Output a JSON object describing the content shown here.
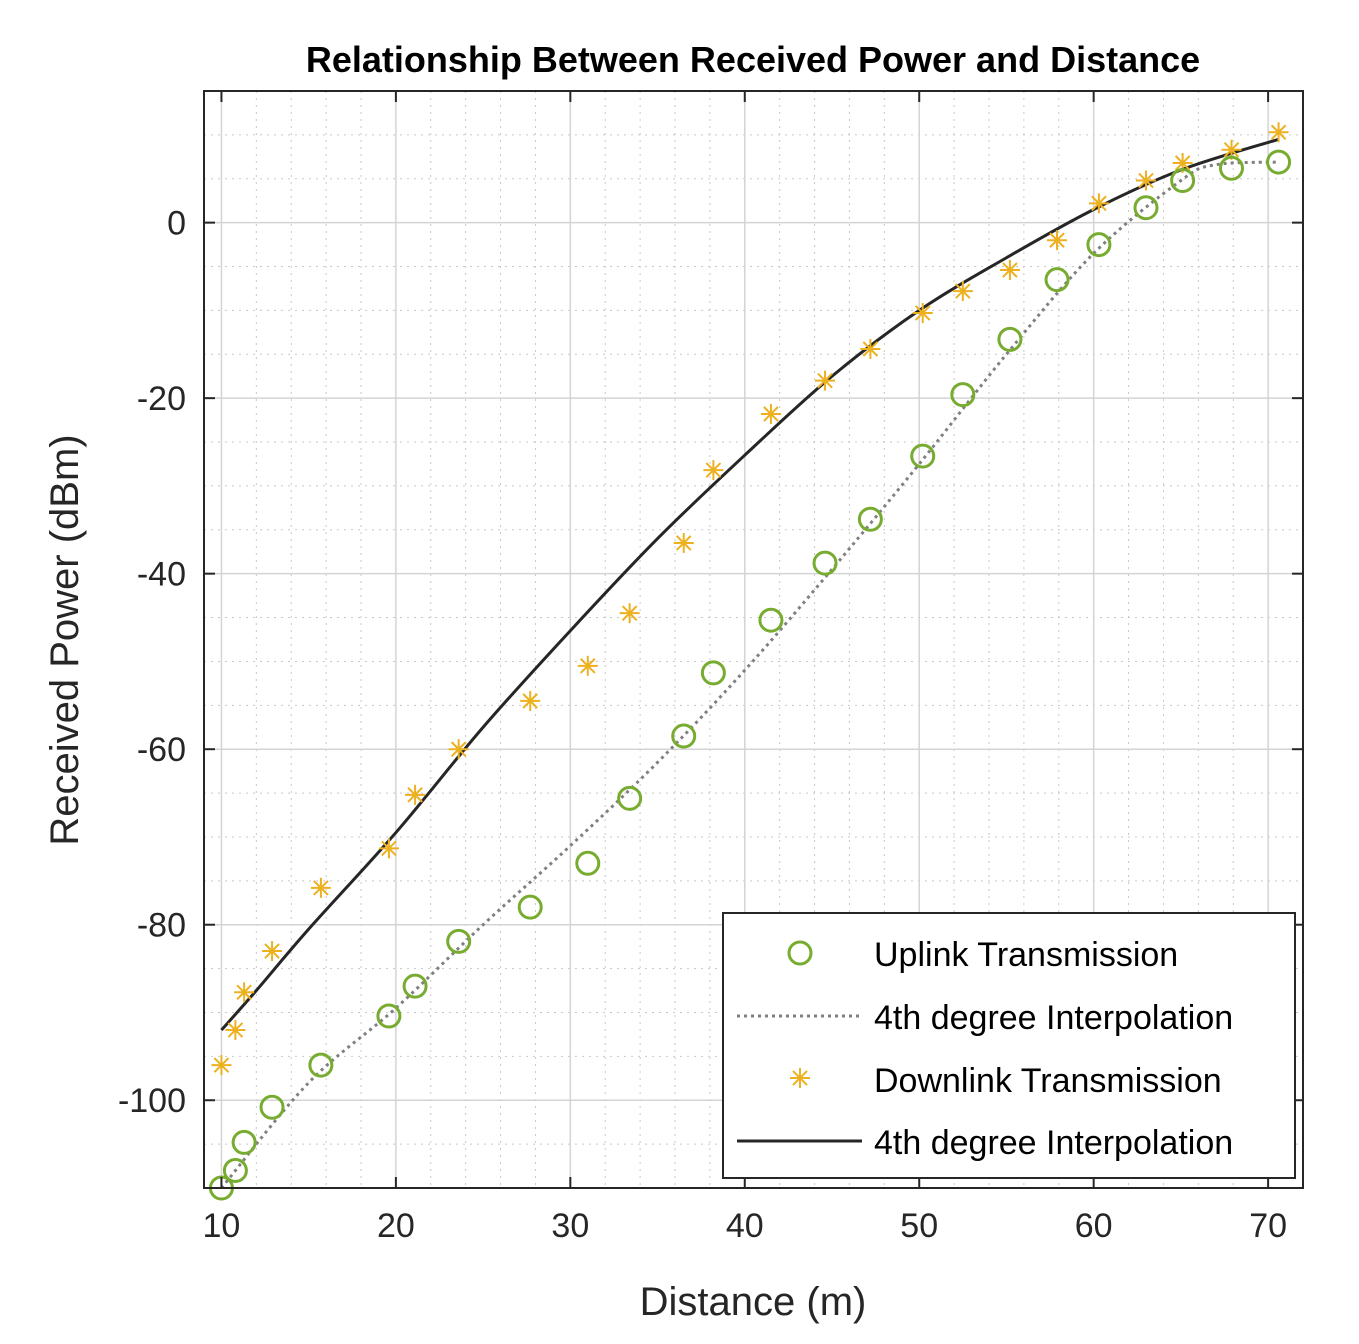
{
  "chart_data": {
    "type": "scatter",
    "title": "Relationship Between Received Power and Distance",
    "xlabel": "Distance (m)",
    "ylabel": "Received Power (dBm)",
    "xlim": [
      9,
      72
    ],
    "ylim": [
      -110,
      15
    ],
    "xticks": [
      10,
      20,
      30,
      40,
      50,
      60,
      70
    ],
    "yticks": [
      0,
      -20,
      -40,
      -60,
      -80,
      -100
    ],
    "xtick_labels": [
      "10",
      "20",
      "30",
      "40",
      "50",
      "60",
      "70"
    ],
    "ytick_labels": [
      "0",
      "-20",
      "-40",
      "-60",
      "-80",
      "-100"
    ],
    "grid": true,
    "minor_grid": true,
    "legend_position": "bottom-right",
    "series": [
      {
        "name": "Uplink Transmission",
        "kind": "scatter",
        "marker": "circle",
        "color": "#77AC30",
        "x": [
          10.0,
          10.8,
          11.3,
          12.9,
          15.7,
          19.6,
          21.1,
          23.6,
          27.7,
          31.0,
          33.4,
          36.5,
          38.2,
          41.5,
          44.6,
          47.2,
          50.2,
          52.5,
          55.2,
          57.9,
          60.3,
          63.0,
          65.1,
          67.9,
          70.6
        ],
        "y": [
          -110.0,
          -108.0,
          -104.8,
          -100.8,
          -96.0,
          -90.4,
          -87.0,
          -81.9,
          -78.0,
          -73.0,
          -65.6,
          -58.5,
          -51.3,
          -45.3,
          -38.8,
          -33.8,
          -26.6,
          -19.6,
          -13.3,
          -6.5,
          -2.5,
          1.7,
          4.8,
          6.2,
          6.9
        ]
      },
      {
        "name": "4th degree Interpolation",
        "kind": "line",
        "style": "dotted",
        "color": "#808080",
        "x": [
          10,
          15,
          20,
          25,
          30,
          35,
          40,
          45,
          50,
          55,
          60,
          65,
          67,
          70.6
        ],
        "y": [
          -110,
          -98,
          -89.5,
          -80,
          -71,
          -61.5,
          -51,
          -39.5,
          -27.5,
          -15,
          -3.5,
          4.8,
          6.6,
          6.9
        ]
      },
      {
        "name": "Downlink Transmission",
        "kind": "scatter",
        "marker": "asterisk",
        "color": "#EDB120",
        "x": [
          10.0,
          10.8,
          11.3,
          12.9,
          15.7,
          19.6,
          21.1,
          23.6,
          27.7,
          31.0,
          33.4,
          36.5,
          38.2,
          41.5,
          44.6,
          47.2,
          50.2,
          52.5,
          55.2,
          57.9,
          60.3,
          63.0,
          65.1,
          67.9,
          70.6
        ],
        "y": [
          -96.0,
          -92.0,
          -87.7,
          -83.0,
          -75.8,
          -71.3,
          -65.2,
          -60.0,
          -54.5,
          -50.5,
          -44.5,
          -36.5,
          -28.2,
          -21.8,
          -18.0,
          -14.4,
          -10.3,
          -7.8,
          -5.4,
          -2.0,
          2.2,
          4.8,
          6.8,
          8.3,
          10.3
        ]
      },
      {
        "name": "4th degree Interpolation",
        "kind": "line",
        "style": "solid",
        "color": "#262626",
        "x": [
          10,
          12,
          15,
          20,
          25,
          30,
          35,
          40,
          45,
          50,
          55,
          60,
          65,
          70.6
        ],
        "y": [
          -92,
          -87.5,
          -80.5,
          -69.5,
          -57.5,
          -46.5,
          -36,
          -26.5,
          -17.5,
          -10,
          -4,
          1.5,
          6,
          9.5
        ]
      }
    ]
  }
}
